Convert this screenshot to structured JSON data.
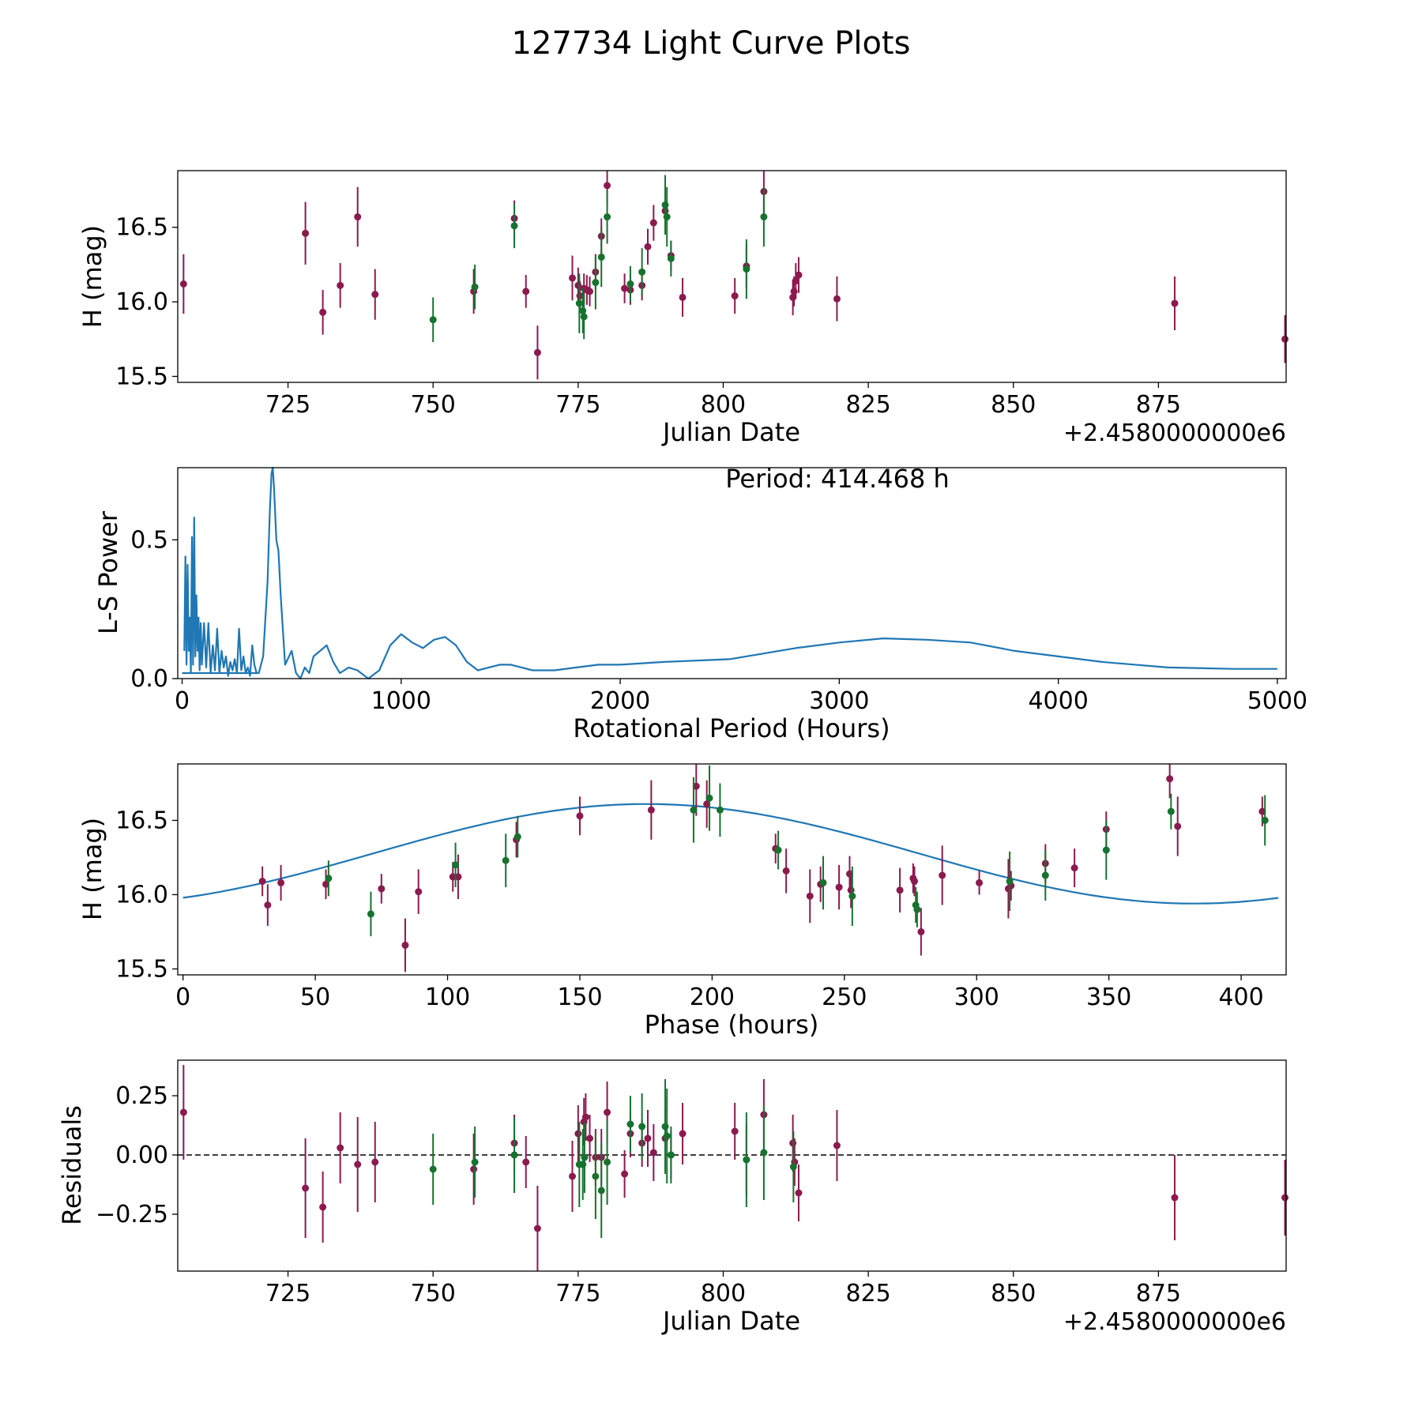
{
  "figure": {
    "title": "127734 Light Curve Plots",
    "colors": {
      "series_a": "#8b1a4f",
      "series_b": "#17722f",
      "model_line": "#1f77b4",
      "axes": "#000000"
    }
  },
  "chart_data": [
    {
      "id": "lightcurve",
      "type": "scatter",
      "title": "",
      "xlabel": "Julian Date",
      "ylabel": "H (mag)",
      "xlim": [
        706,
        897
      ],
      "ylim": [
        15.46,
        16.88
      ],
      "x_offset_label": "+2.4580000000e6",
      "xticks": [
        725,
        750,
        775,
        800,
        825,
        850,
        875
      ],
      "xtick_labels": [
        "725",
        "750",
        "775",
        "800",
        "825",
        "850",
        "875"
      ],
      "yticks": [
        15.5,
        16.0,
        16.5
      ],
      "ytick_labels": [
        "15.5",
        "16.0",
        "16.5"
      ],
      "series": [
        {
          "name": "filter_1",
          "color": "#8b1a4f",
          "x": [
            707.0,
            728.0,
            731.0,
            734.0,
            737.0,
            740.0,
            757.0,
            764.0,
            766.0,
            768.0,
            774.0,
            775.0,
            775.3,
            776.0,
            776.5,
            777.0,
            778.0,
            779.0,
            780.0,
            783.0,
            784.0,
            786.0,
            787.0,
            788.0,
            790.0,
            791.0,
            793.0,
            802.0,
            804.0,
            807.0,
            812.0,
            812.2,
            812.5,
            813.0,
            819.6,
            877.8,
            896.8
          ],
          "y": [
            16.12,
            16.46,
            15.93,
            16.11,
            16.57,
            16.05,
            16.07,
            16.56,
            16.07,
            15.66,
            16.16,
            16.11,
            16.04,
            16.09,
            16.08,
            16.07,
            16.2,
            16.44,
            16.78,
            16.09,
            16.08,
            16.11,
            16.37,
            16.53,
            16.61,
            16.31,
            16.03,
            16.04,
            16.24,
            16.74,
            16.03,
            16.07,
            16.14,
            16.18,
            16.02,
            15.99,
            15.75
          ],
          "err": [
            0.2,
            0.21,
            0.15,
            0.15,
            0.2,
            0.17,
            0.15,
            0.12,
            0.11,
            0.18,
            0.15,
            0.12,
            0.1,
            0.1,
            0.1,
            0.1,
            0.12,
            0.12,
            0.13,
            0.1,
            0.1,
            0.1,
            0.12,
            0.12,
            0.13,
            0.1,
            0.13,
            0.12,
            0.15,
            0.16,
            0.12,
            0.1,
            0.12,
            0.12,
            0.15,
            0.18,
            0.16
          ]
        },
        {
          "name": "filter_2",
          "color": "#17722f",
          "x": [
            750.0,
            757.2,
            764.0,
            775.2,
            775.8,
            776.0,
            778.0,
            779.0,
            780.0,
            784.0,
            786.0,
            790.0,
            790.3,
            791.0,
            804.0,
            807.0
          ],
          "y": [
            15.88,
            16.1,
            16.51,
            15.99,
            15.94,
            15.9,
            16.13,
            16.3,
            16.57,
            16.12,
            16.2,
            16.65,
            16.57,
            16.29,
            16.22,
            16.57
          ],
          "err": [
            0.15,
            0.15,
            0.15,
            0.2,
            0.15,
            0.15,
            0.18,
            0.2,
            0.18,
            0.12,
            0.16,
            0.2,
            0.2,
            0.12,
            0.2,
            0.2
          ]
        }
      ]
    },
    {
      "id": "periodogram",
      "type": "line",
      "title": "",
      "xlabel": "Rotational Period (Hours)",
      "ylabel": "L-S Power",
      "xlim": [
        -20,
        5040
      ],
      "ylim": [
        0.0,
        0.76
      ],
      "annotation": "Period: 414.468 h",
      "xticks": [
        0,
        1000,
        2000,
        3000,
        4000,
        5000
      ],
      "xtick_labels": [
        "0",
        "1000",
        "2000",
        "3000",
        "4000",
        "5000"
      ],
      "yticks": [
        0.0,
        0.5
      ],
      "ytick_labels": [
        "0.0",
        "0.5"
      ],
      "series": [
        {
          "name": "power",
          "color": "#1f77b4",
          "x": [
            0,
            350,
            370,
            390,
            400,
            408,
            414,
            420,
            430,
            440,
            450,
            470,
            500,
            520,
            540,
            560,
            580,
            600,
            630,
            660,
            690,
            720,
            760,
            800,
            850,
            900,
            950,
            1000,
            1050,
            1100,
            1150,
            1200,
            1250,
            1300,
            1350,
            1400,
            1450,
            1500,
            1550,
            1600,
            1650,
            1700,
            1800,
            1900,
            2000,
            2200,
            2500,
            2800,
            3000,
            3200,
            3400,
            3600,
            3800,
            4000,
            4200,
            4500,
            4800,
            5000
          ],
          "y": [
            0.02,
            0.02,
            0.08,
            0.35,
            0.6,
            0.74,
            0.76,
            0.68,
            0.5,
            0.46,
            0.3,
            0.05,
            0.1,
            0.02,
            0.0,
            0.04,
            0.02,
            0.08,
            0.1,
            0.12,
            0.06,
            0.02,
            0.04,
            0.03,
            0.0,
            0.03,
            0.12,
            0.16,
            0.13,
            0.11,
            0.14,
            0.15,
            0.12,
            0.06,
            0.03,
            0.04,
            0.05,
            0.05,
            0.04,
            0.03,
            0.03,
            0.03,
            0.04,
            0.05,
            0.05,
            0.06,
            0.07,
            0.11,
            0.13,
            0.145,
            0.14,
            0.13,
            0.1,
            0.08,
            0.06,
            0.04,
            0.035,
            0.035
          ]
        },
        {
          "name": "short_period_forest",
          "color": "#1f77b4",
          "x": [
            10,
            15,
            20,
            25,
            30,
            35,
            40,
            45,
            50,
            55,
            60,
            65,
            70,
            75,
            80,
            85,
            90,
            100,
            110,
            120,
            130,
            140,
            150,
            160,
            170,
            180,
            190,
            200,
            210,
            220,
            230,
            240,
            250,
            260,
            270,
            280,
            290,
            300,
            310,
            320,
            330,
            340
          ],
          "y": [
            0.1,
            0.44,
            0.05,
            0.41,
            0.1,
            0.22,
            0.02,
            0.51,
            0.05,
            0.58,
            0.08,
            0.3,
            0.1,
            0.22,
            0.03,
            0.2,
            0.05,
            0.2,
            0.04,
            0.2,
            0.02,
            0.12,
            0.03,
            0.18,
            0.02,
            0.1,
            0.04,
            0.08,
            0.01,
            0.06,
            0.03,
            0.07,
            0.02,
            0.18,
            0.03,
            0.08,
            0.02,
            0.04,
            0.01,
            0.12,
            0.05,
            0.02
          ]
        }
      ]
    },
    {
      "id": "phased",
      "type": "scatter",
      "title": "",
      "xlabel": "Phase (hours)",
      "ylabel": "H (mag)",
      "xlim": [
        -2,
        417
      ],
      "ylim": [
        15.46,
        16.88
      ],
      "xticks": [
        0,
        50,
        100,
        150,
        200,
        250,
        300,
        350,
        400
      ],
      "xtick_labels": [
        "0",
        "50",
        "100",
        "150",
        "200",
        "250",
        "300",
        "350",
        "400"
      ],
      "yticks": [
        15.5,
        16.0,
        16.5
      ],
      "ytick_labels": [
        "15.5",
        "16.0",
        "16.5"
      ],
      "model": {
        "name": "sinusoid_fit",
        "color": "#1f77b4",
        "mean": 16.275,
        "amplitude": 0.335,
        "peak_phase": 175.0,
        "period": 414.468
      },
      "series": [
        {
          "name": "filter_1",
          "color": "#8b1a4f",
          "x": [
            30,
            32,
            37,
            54,
            75,
            84,
            89,
            102,
            104,
            126,
            150,
            177,
            194,
            198,
            224,
            228,
            237,
            241,
            248,
            252,
            252.5,
            271,
            276,
            276.5,
            279,
            287,
            301,
            312,
            313,
            326,
            337,
            349,
            373,
            376,
            408
          ],
          "y": [
            16.09,
            15.93,
            16.08,
            16.07,
            16.04,
            15.66,
            16.02,
            16.12,
            16.12,
            16.37,
            16.53,
            16.57,
            16.73,
            16.61,
            16.31,
            16.16,
            15.99,
            16.07,
            16.05,
            16.14,
            16.03,
            16.03,
            16.11,
            16.09,
            15.75,
            16.13,
            16.08,
            16.04,
            16.06,
            16.21,
            16.18,
            16.44,
            16.78,
            16.46,
            16.56
          ],
          "err": [
            0.1,
            0.14,
            0.12,
            0.1,
            0.1,
            0.18,
            0.15,
            0.1,
            0.15,
            0.12,
            0.13,
            0.2,
            0.2,
            0.16,
            0.1,
            0.15,
            0.18,
            0.12,
            0.15,
            0.12,
            0.12,
            0.15,
            0.1,
            0.1,
            0.16,
            0.2,
            0.08,
            0.2,
            0.1,
            0.13,
            0.13,
            0.12,
            0.13,
            0.2,
            0.1
          ]
        },
        {
          "name": "filter_2",
          "color": "#17722f",
          "x": [
            55,
            71,
            103,
            122,
            126.5,
            193,
            199,
            203,
            225,
            242,
            253,
            277,
            277.5,
            312.5,
            326,
            349,
            373.5,
            409
          ],
          "y": [
            16.11,
            15.87,
            16.2,
            16.23,
            16.39,
            16.57,
            16.65,
            16.57,
            16.3,
            16.08,
            15.99,
            15.93,
            15.9,
            16.09,
            16.13,
            16.3,
            16.56,
            16.5
          ],
          "err": [
            0.12,
            0.15,
            0.15,
            0.18,
            0.14,
            0.22,
            0.22,
            0.18,
            0.13,
            0.18,
            0.2,
            0.12,
            0.12,
            0.2,
            0.17,
            0.2,
            0.12,
            0.17
          ]
        }
      ]
    },
    {
      "id": "residuals",
      "type": "scatter",
      "title": "",
      "xlabel": "Julian Date",
      "ylabel": "Residuals",
      "xlim": [
        706,
        897
      ],
      "ylim": [
        -0.49,
        0.4
      ],
      "x_offset_label": "+2.4580000000e6",
      "reference_line": 0.0,
      "xticks": [
        725,
        750,
        775,
        800,
        825,
        850,
        875
      ],
      "xtick_labels": [
        "725",
        "750",
        "775",
        "800",
        "825",
        "850",
        "875"
      ],
      "yticks": [
        -0.25,
        0.0,
        0.25
      ],
      "ytick_labels": [
        "−0.25",
        "0.00",
        "0.25"
      ],
      "series": [
        {
          "name": "filter_1",
          "color": "#8b1a4f",
          "x": [
            707.0,
            728.0,
            731.0,
            734.0,
            737.0,
            740.0,
            757.0,
            764.0,
            766.0,
            768.0,
            774.0,
            775.0,
            776.0,
            776.3,
            777.0,
            778.0,
            779.0,
            780.0,
            783.0,
            784.0,
            786.0,
            787.0,
            788.0,
            790.0,
            791.0,
            793.0,
            802.0,
            804.0,
            807.0,
            812.0,
            812.3,
            813.0,
            819.6,
            877.8,
            896.8
          ],
          "y": [
            0.18,
            -0.14,
            -0.22,
            0.03,
            -0.04,
            -0.03,
            -0.06,
            0.05,
            -0.03,
            -0.31,
            -0.09,
            0.09,
            0.14,
            0.16,
            0.07,
            -0.01,
            -0.01,
            0.18,
            -0.08,
            0.09,
            0.05,
            0.07,
            0.01,
            0.07,
            0.0,
            0.09,
            0.1,
            -0.02,
            0.17,
            0.05,
            -0.03,
            -0.16,
            0.04,
            -0.18,
            -0.18
          ],
          "err": [
            0.2,
            0.21,
            0.15,
            0.15,
            0.2,
            0.17,
            0.15,
            0.12,
            0.11,
            0.18,
            0.15,
            0.12,
            0.1,
            0.1,
            0.1,
            0.12,
            0.12,
            0.13,
            0.1,
            0.1,
            0.1,
            0.12,
            0.12,
            0.13,
            0.1,
            0.13,
            0.12,
            0.15,
            0.15,
            0.12,
            0.1,
            0.12,
            0.15,
            0.18,
            0.16
          ]
        },
        {
          "name": "filter_2",
          "color": "#17722f",
          "x": [
            750.0,
            757.2,
            764.0,
            775.2,
            775.8,
            776.1,
            778.0,
            779.0,
            780.0,
            784.0,
            786.0,
            790.0,
            790.3,
            791.0,
            804.0,
            807.0,
            812.1
          ],
          "y": [
            -0.06,
            -0.03,
            0.0,
            -0.04,
            -0.04,
            -0.01,
            -0.09,
            -0.15,
            -0.03,
            0.13,
            0.12,
            0.12,
            0.08,
            0.0,
            -0.02,
            0.01,
            -0.05
          ],
          "err": [
            0.15,
            0.15,
            0.16,
            0.18,
            0.15,
            0.15,
            0.18,
            0.2,
            0.18,
            0.12,
            0.14,
            0.2,
            0.2,
            0.12,
            0.2,
            0.2,
            0.15
          ]
        }
      ]
    }
  ]
}
